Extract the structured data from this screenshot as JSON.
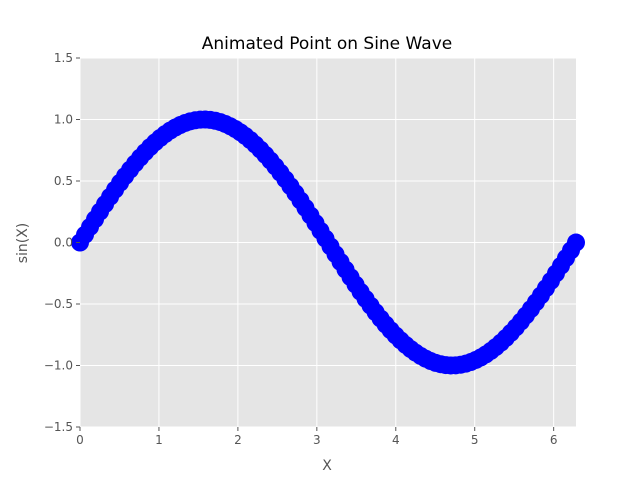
{
  "chart_data": {
    "type": "scatter",
    "title": "Animated Point on Sine Wave",
    "xlabel": "X",
    "ylabel": "sin(X)",
    "xlim": [
      0,
      6.283
    ],
    "ylim": [
      -1.5,
      1.5
    ],
    "x_ticks": [
      0,
      1,
      2,
      3,
      4,
      5,
      6
    ],
    "x_tick_labels": [
      "0",
      "1",
      "2",
      "3",
      "4",
      "5",
      "6"
    ],
    "y_ticks": [
      -1.5,
      -1.0,
      -0.5,
      0.0,
      0.5,
      1.0,
      1.5
    ],
    "y_tick_labels": [
      "−1.5",
      "−1.0",
      "−0.5",
      "0.0",
      "0.5",
      "1.0",
      "1.5"
    ],
    "grid": true,
    "background": "#e5e5e5",
    "grid_color": "#ffffff",
    "series": [
      {
        "function": "sin",
        "x_range": [
          0,
          6.283
        ],
        "points": 100,
        "color": "#0000ff",
        "marker": "circle"
      }
    ]
  }
}
